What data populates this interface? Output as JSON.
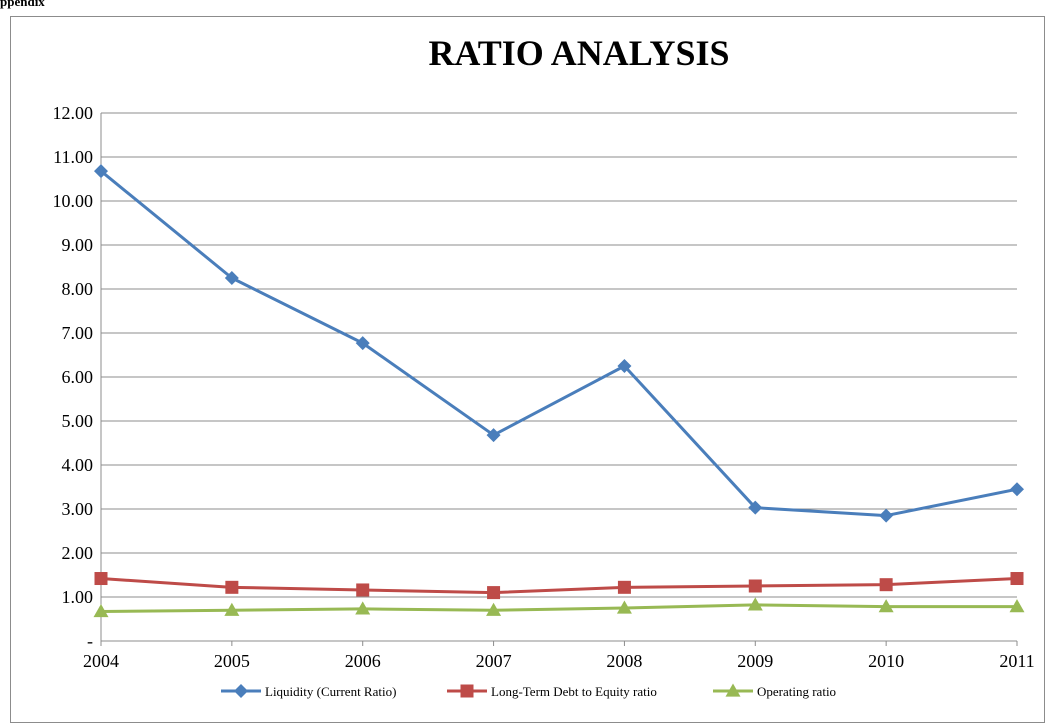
{
  "page": {
    "top_label": "ppendix"
  },
  "chart_data": {
    "type": "line",
    "title": "RATIO ANALYSIS",
    "xlabel": "",
    "ylabel": "",
    "categories": [
      "2004",
      "2005",
      "2006",
      "2007",
      "2008",
      "2009",
      "2010",
      "2011"
    ],
    "ylim": [
      0,
      12
    ],
    "y_ticks": [
      0,
      1,
      2,
      3,
      4,
      5,
      6,
      7,
      8,
      9,
      10,
      11,
      12
    ],
    "y_tick_labels": [
      "-",
      "1.00",
      "2.00",
      "3.00",
      "4.00",
      "5.00",
      "6.00",
      "7.00",
      "8.00",
      "9.00",
      "10.00",
      "11.00",
      "12.00"
    ],
    "grid": true,
    "legend_position": "bottom",
    "series": [
      {
        "name": "Liquidity (Current Ratio)",
        "color": "#4a7ebb",
        "marker": "diamond",
        "values": [
          10.68,
          8.25,
          6.77,
          4.68,
          6.25,
          3.03,
          2.85,
          3.45
        ]
      },
      {
        "name": "Long-Term Debt to Equity ratio",
        "color": "#be4b48",
        "marker": "square",
        "values": [
          1.42,
          1.22,
          1.16,
          1.1,
          1.22,
          1.25,
          1.28,
          1.42
        ]
      },
      {
        "name": "Operating ratio",
        "color": "#98b954",
        "marker": "triangle",
        "values": [
          0.67,
          0.7,
          0.73,
          0.7,
          0.75,
          0.82,
          0.78,
          0.78
        ]
      }
    ]
  }
}
